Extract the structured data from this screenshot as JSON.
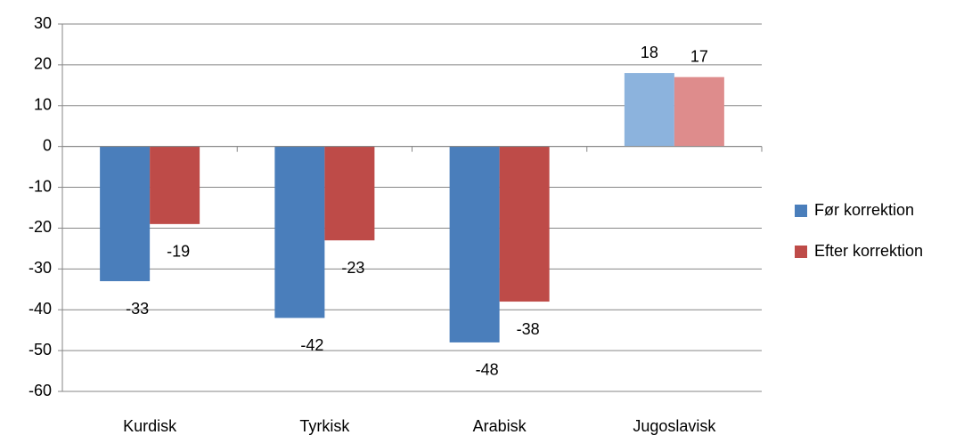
{
  "chart_data": {
    "type": "bar",
    "categories": [
      "Kurdisk",
      "Tyrkisk",
      "Arabisk",
      "Jugoslavisk"
    ],
    "series": [
      {
        "name": "Før korrektion",
        "color": "#4a7ebb",
        "point_colors": [
          "#4a7ebb",
          "#4a7ebb",
          "#4a7ebb",
          "#8cb3dd"
        ],
        "values": [
          -33,
          -42,
          -48,
          18
        ]
      },
      {
        "name": "Efter korrektion",
        "color": "#be4b48",
        "point_colors": [
          "#be4b48",
          "#be4b48",
          "#be4b48",
          "#de8c8c"
        ],
        "values": [
          -19,
          -23,
          -38,
          17
        ]
      }
    ],
    "ylim": [
      -60,
      30
    ],
    "yticks": [
      -60,
      -50,
      -40,
      -30,
      -20,
      -10,
      0,
      10,
      20,
      30
    ],
    "grid": true,
    "legend": "right"
  }
}
